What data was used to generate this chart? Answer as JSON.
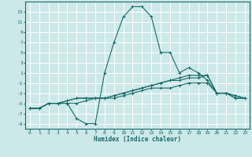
{
  "xlabel": "Humidex (Indice chaleur)",
  "ylabel": "",
  "bg_color": "#cce8e8",
  "grid_color": "#ffffff",
  "line_color": "#1a6b6b",
  "xlim": [
    -0.5,
    23.5
  ],
  "ylim": [
    -10,
    15
  ],
  "xticks": [
    0,
    1,
    2,
    3,
    4,
    5,
    6,
    7,
    8,
    9,
    10,
    11,
    12,
    13,
    14,
    15,
    16,
    17,
    18,
    19,
    20,
    21,
    22,
    23
  ],
  "yticks": [
    -9,
    -7,
    -5,
    -3,
    -1,
    1,
    3,
    5,
    7,
    9,
    11,
    13
  ],
  "series": [
    {
      "x": [
        0,
        1,
        2,
        3,
        4,
        5,
        6,
        7,
        8,
        9,
        10,
        11,
        12,
        13,
        14,
        15,
        16,
        17,
        18,
        19,
        20,
        21,
        22,
        23
      ],
      "y": [
        -6,
        -6,
        -5,
        -5,
        -5,
        -8,
        -9,
        -9,
        1,
        7,
        12,
        14,
        14,
        12,
        5,
        5,
        1,
        2,
        1,
        -0.5,
        -3,
        -3,
        -4,
        -4
      ]
    },
    {
      "x": [
        0,
        1,
        2,
        3,
        4,
        5,
        6,
        7,
        8,
        9,
        10,
        11,
        12,
        13,
        14,
        15,
        16,
        17,
        18,
        19,
        20,
        21,
        22,
        23
      ],
      "y": [
        -6,
        -6,
        -5,
        -5,
        -4.5,
        -4,
        -4,
        -4,
        -4,
        -3.5,
        -3,
        -2.5,
        -2,
        -1.5,
        -1,
        -0.5,
        0,
        0.5,
        0.5,
        0.5,
        -3,
        -3,
        -4,
        -4
      ]
    },
    {
      "x": [
        0,
        1,
        2,
        3,
        4,
        5,
        6,
        7,
        8,
        9,
        10,
        11,
        12,
        13,
        14,
        15,
        16,
        17,
        18,
        19,
        20,
        21,
        22,
        23
      ],
      "y": [
        -6,
        -6,
        -5,
        -5,
        -4.5,
        -4,
        -4,
        -4,
        -4,
        -3.5,
        -3,
        -2.5,
        -2,
        -1.5,
        -1,
        -0.5,
        -0.5,
        0,
        0,
        0.5,
        -3,
        -3,
        -3.5,
        -4
      ]
    },
    {
      "x": [
        0,
        1,
        2,
        3,
        4,
        5,
        6,
        7,
        8,
        9,
        10,
        11,
        12,
        13,
        14,
        15,
        16,
        17,
        18,
        19,
        20,
        21,
        22,
        23
      ],
      "y": [
        -6,
        -6,
        -5,
        -5,
        -5,
        -5,
        -4.5,
        -4,
        -4,
        -4,
        -3.5,
        -3,
        -2.5,
        -2,
        -2,
        -2,
        -1.5,
        -1,
        -1,
        -1,
        -3,
        -3,
        -3.5,
        -4
      ]
    }
  ]
}
